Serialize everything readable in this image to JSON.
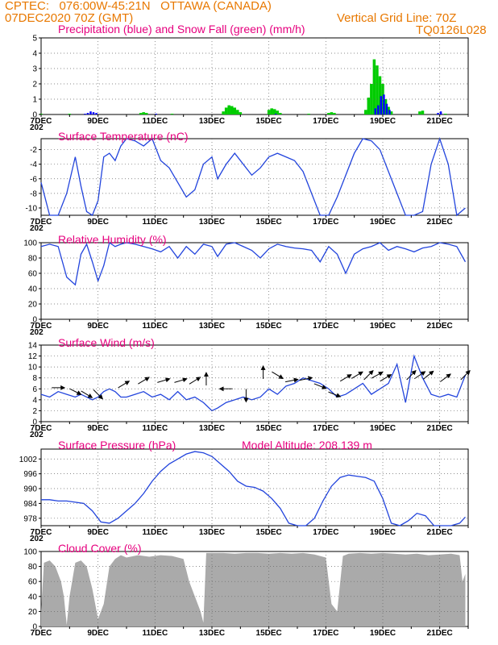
{
  "header": {
    "line1": "CPTEC:   076:00W-45:21N   OTTAWA (CANADA)",
    "line2": "07DEC2020 70Z (GMT)",
    "grid_note": "Vertical Grid Line: 70Z",
    "run_code": "TQ0126L028"
  },
  "x_axis": {
    "day_min": 7,
    "day_max": 22,
    "major_ticks": [
      7,
      9,
      11,
      13,
      15,
      17,
      19,
      21
    ],
    "major_labels": [
      "7DEC",
      "9DEC",
      "11DEC",
      "13DEC",
      "15DEC",
      "17DEC",
      "19DEC",
      "21DEC"
    ],
    "first_label_subline": "202"
  },
  "colors": {
    "precipitation": "#0000ff",
    "snow": "#00cc00",
    "line": "#2244dd",
    "wind_arrow": "#000000",
    "cloud": "#aaaaaa",
    "title": "#e6007e",
    "header": "#e87800"
  },
  "chart_data": [
    {
      "type": "bar",
      "title": "Precipitation (blue) and Snow Fall (green) (mm/h)",
      "ylim": [
        0,
        5
      ],
      "yticks": [
        0,
        1,
        2,
        3,
        4,
        5
      ],
      "series": [
        {
          "name": "Precipitation",
          "x": [
            8.5,
            8.6,
            8.7,
            8.8,
            8.9,
            11.0,
            15.2,
            18.7,
            18.8,
            18.9,
            19.0,
            19.1,
            19.2,
            20.9,
            21.0
          ],
          "values": [
            0.05,
            0.1,
            0.2,
            0.15,
            0.1,
            0.05,
            0.05,
            0.4,
            0.6,
            1.2,
            1.3,
            0.7,
            0.3,
            0.1,
            0.2
          ]
        },
        {
          "name": "Snow Fall",
          "x": [
            7.0,
            8.0,
            10.5,
            10.6,
            10.7,
            11.6,
            13.4,
            13.5,
            13.6,
            13.7,
            13.8,
            13.9,
            14.0,
            15.0,
            15.1,
            15.2,
            15.3,
            15.4,
            16.4,
            17.1,
            17.2,
            17.3,
            18.4,
            18.5,
            18.6,
            18.7,
            18.8,
            18.9,
            19.0,
            19.1,
            19.2,
            19.3,
            20.3,
            20.4,
            21.2
          ],
          "values": [
            0.05,
            0.05,
            0.1,
            0.15,
            0.1,
            0.05,
            0.2,
            0.45,
            0.6,
            0.55,
            0.45,
            0.3,
            0.15,
            0.3,
            0.4,
            0.35,
            0.25,
            0.1,
            0.05,
            0.1,
            0.15,
            0.1,
            0.3,
            1.1,
            2.0,
            3.6,
            3.2,
            2.5,
            2.0,
            1.0,
            0.5,
            0.2,
            0.2,
            0.25,
            0.05
          ]
        }
      ]
    },
    {
      "type": "line",
      "title": "Surface Temperature (nC)",
      "ylim": [
        -11,
        -0.5
      ],
      "yticks": [
        -10,
        -8,
        -6,
        -4,
        -2
      ],
      "series": [
        {
          "name": "",
          "x": [
            7.0,
            7.3,
            7.6,
            7.9,
            8.2,
            8.4,
            8.6,
            8.8,
            9.0,
            9.2,
            9.4,
            9.6,
            9.8,
            10.0,
            10.3,
            10.6,
            10.9,
            11.2,
            11.5,
            11.8,
            12.1,
            12.4,
            12.7,
            13.0,
            13.2,
            13.5,
            13.8,
            14.1,
            14.4,
            14.7,
            15.0,
            15.3,
            15.6,
            15.9,
            16.2,
            16.5,
            16.8,
            17.1,
            17.4,
            17.7,
            18.0,
            18.3,
            18.6,
            18.9,
            19.2,
            19.5,
            19.8,
            20.1,
            20.4,
            20.7,
            21.0,
            21.3,
            21.6,
            21.9
          ],
          "values": [
            -6.5,
            -11,
            -11.5,
            -8,
            -3,
            -7,
            -10.5,
            -11.5,
            -9,
            -3,
            -2.5,
            -3.5,
            -1.5,
            -0.5,
            -0.8,
            -1.5,
            -0.5,
            -3.5,
            -4.5,
            -6.5,
            -8.5,
            -7.5,
            -4,
            -3,
            -6,
            -4,
            -2.5,
            -4,
            -5.5,
            -4.5,
            -3,
            -2.5,
            -3,
            -3.5,
            -5,
            -8,
            -11,
            -11.5,
            -8.5,
            -5.5,
            -2.5,
            -0.5,
            -0.8,
            -2,
            -5,
            -8,
            -11,
            -11.5,
            -10.5,
            -4,
            -0.5,
            -4,
            -11.5,
            -10
          ]
        }
      ]
    },
    {
      "type": "line",
      "title": "Relative Humidity (%)",
      "ylim": [
        0,
        100
      ],
      "yticks": [
        0,
        20,
        40,
        60,
        80,
        100
      ],
      "series": [
        {
          "name": "",
          "x": [
            7.0,
            7.3,
            7.6,
            7.9,
            8.2,
            8.4,
            8.6,
            8.8,
            9.0,
            9.2,
            9.4,
            9.6,
            9.8,
            10.0,
            10.3,
            10.6,
            10.9,
            11.2,
            11.5,
            11.8,
            12.1,
            12.4,
            12.7,
            13.0,
            13.2,
            13.5,
            13.8,
            14.1,
            14.4,
            14.7,
            15.0,
            15.3,
            15.6,
            15.9,
            16.2,
            16.5,
            16.8,
            17.1,
            17.4,
            17.7,
            18.0,
            18.3,
            18.6,
            18.9,
            19.2,
            19.5,
            19.8,
            20.1,
            20.4,
            20.7,
            21.0,
            21.3,
            21.6,
            21.9
          ],
          "values": [
            95,
            98,
            95,
            55,
            45,
            85,
            98,
            75,
            50,
            70,
            100,
            95,
            98,
            100,
            98,
            95,
            92,
            88,
            95,
            80,
            95,
            85,
            98,
            95,
            82,
            98,
            100,
            95,
            90,
            80,
            92,
            98,
            95,
            93,
            92,
            90,
            75,
            95,
            85,
            60,
            85,
            92,
            95,
            100,
            90,
            95,
            92,
            88,
            93,
            95,
            100,
            98,
            95,
            75
          ]
        }
      ]
    },
    {
      "type": "line",
      "title": "Surface Wind (m/s)",
      "ylim": [
        0,
        14
      ],
      "yticks": [
        0,
        2,
        4,
        6,
        8,
        10,
        12,
        14
      ],
      "series": [
        {
          "name": "",
          "x": [
            7.0,
            7.3,
            7.6,
            7.9,
            8.2,
            8.4,
            8.6,
            8.8,
            9.0,
            9.2,
            9.4,
            9.6,
            9.8,
            10.0,
            10.3,
            10.6,
            10.9,
            11.2,
            11.5,
            11.8,
            12.1,
            12.4,
            12.7,
            13.0,
            13.2,
            13.5,
            13.8,
            14.1,
            14.4,
            14.7,
            15.0,
            15.3,
            15.6,
            15.9,
            16.2,
            16.5,
            16.8,
            17.1,
            17.4,
            17.7,
            18.0,
            18.3,
            18.6,
            18.9,
            19.2,
            19.5,
            19.8,
            20.1,
            20.4,
            20.7,
            21.0,
            21.3,
            21.6,
            21.9
          ],
          "values": [
            5,
            4.5,
            5.5,
            5,
            4.5,
            5,
            4.5,
            4,
            4.5,
            5.5,
            6,
            5.5,
            4.5,
            4.5,
            5,
            5.5,
            4.5,
            5,
            4,
            5.5,
            4,
            4.5,
            3.5,
            2,
            2.5,
            3.5,
            4,
            4.5,
            4,
            4.5,
            6,
            5,
            6.5,
            7,
            8,
            7.5,
            7,
            6,
            4.5,
            5,
            6,
            7,
            5,
            6,
            7,
            10.5,
            3.5,
            12,
            8,
            5,
            4.5,
            5,
            4.5,
            8.5
          ]
        },
        {
          "name": "wind_vectors",
          "x": [
            7.6,
            8.2,
            8.6,
            9.0,
            9.9,
            10.6,
            11.3,
            11.9,
            12.4,
            12.8,
            13.5,
            14.2,
            14.8,
            15.3,
            15.8,
            16.3,
            16.8,
            17.3,
            17.7,
            18.1,
            18.5,
            18.8,
            19.1,
            20.0,
            20.3,
            20.6,
            21.2,
            21.9
          ],
          "values": [
            6.2,
            5.5,
            5.0,
            5.0,
            6.8,
            7.5,
            7.5,
            7.5,
            7.5,
            7.8,
            6.0,
            4.8,
            9.0,
            8.5,
            7.5,
            7.8,
            6.5,
            5.0,
            8.0,
            8.5,
            8.5,
            8.5,
            8.0,
            8.5,
            8.5,
            8.5,
            8.0,
            8.5
          ],
          "u": [
            1,
            1,
            1,
            0.6,
            1,
            1,
            1,
            1,
            0.8,
            0,
            -1,
            0,
            0,
            1,
            1,
            1,
            1,
            1,
            1,
            1,
            0.8,
            0.9,
            1,
            0.8,
            0.9,
            1,
            0.8,
            0.7
          ],
          "v": [
            0,
            -0.5,
            -0.6,
            -0.6,
            0.6,
            0.6,
            0.3,
            0.3,
            0.5,
            1,
            0,
            -1,
            1,
            -0.6,
            0.2,
            0.2,
            -0.4,
            -0.4,
            0.6,
            0.6,
            0.8,
            0.5,
            0.6,
            0.8,
            0.6,
            0.8,
            0.6,
            0.7
          ]
        }
      ]
    },
    {
      "type": "line",
      "title": "Surface Pressure (hPa)",
      "subtitle": "Model Altitude: 208.139 m",
      "ylim": [
        975,
        1006
      ],
      "yticks": [
        978,
        984,
        990,
        996,
        1002
      ],
      "series": [
        {
          "name": "",
          "x": [
            7.0,
            7.3,
            7.6,
            7.9,
            8.2,
            8.5,
            8.8,
            9.1,
            9.4,
            9.7,
            10.0,
            10.3,
            10.6,
            10.9,
            11.2,
            11.5,
            11.8,
            12.1,
            12.4,
            12.7,
            13.0,
            13.3,
            13.6,
            13.9,
            14.2,
            14.5,
            14.8,
            15.1,
            15.4,
            15.7,
            16.0,
            16.3,
            16.6,
            16.9,
            17.2,
            17.5,
            17.8,
            18.1,
            18.4,
            18.7,
            19.0,
            19.3,
            19.6,
            19.9,
            20.2,
            20.5,
            20.8,
            21.1,
            21.4,
            21.7,
            21.9
          ],
          "values": [
            985.5,
            985.5,
            985,
            985,
            984.5,
            984,
            981,
            976.5,
            976,
            978,
            981,
            984,
            988,
            993,
            997,
            1000,
            1002,
            1004,
            1005,
            1004.5,
            1003,
            1000,
            997,
            993,
            991,
            990.5,
            989,
            986,
            982,
            976,
            972,
            974,
            978,
            985,
            991,
            994.5,
            995.5,
            995,
            994.5,
            993,
            986,
            976,
            972,
            977,
            980,
            979,
            975,
            973,
            973,
            976,
            978.5
          ]
        }
      ]
    },
    {
      "type": "area",
      "title": "Cloud Cover (%)",
      "ylim": [
        0,
        100
      ],
      "yticks": [
        0,
        20,
        40,
        60,
        80,
        100
      ],
      "series": [
        {
          "name": "",
          "x": [
            7.0,
            7.1,
            7.3,
            7.5,
            7.7,
            7.8,
            7.9,
            8.0,
            8.2,
            8.4,
            8.6,
            8.8,
            9.0,
            9.2,
            9.4,
            9.6,
            9.8,
            10.0,
            10.4,
            10.8,
            11.2,
            11.6,
            12.0,
            12.2,
            12.4,
            12.6,
            12.7,
            12.8,
            13.0,
            13.4,
            13.8,
            14.2,
            14.6,
            15.0,
            15.4,
            15.8,
            16.2,
            16.6,
            17.0,
            17.2,
            17.4,
            17.6,
            17.8,
            18.2,
            18.6,
            19.0,
            19.4,
            19.8,
            20.2,
            20.6,
            21.0,
            21.4,
            21.7,
            21.8,
            21.9
          ],
          "values": [
            20,
            85,
            88,
            80,
            60,
            40,
            2,
            40,
            85,
            88,
            80,
            50,
            10,
            30,
            80,
            90,
            95,
            92,
            95,
            93,
            95,
            94,
            90,
            60,
            40,
            20,
            5,
            98,
            98,
            98,
            97,
            98,
            98,
            97,
            98,
            97,
            98,
            96,
            92,
            30,
            20,
            94,
            97,
            98,
            97,
            98,
            97,
            96,
            97,
            95,
            96,
            97,
            95,
            60,
            70
          ]
        }
      ]
    }
  ]
}
